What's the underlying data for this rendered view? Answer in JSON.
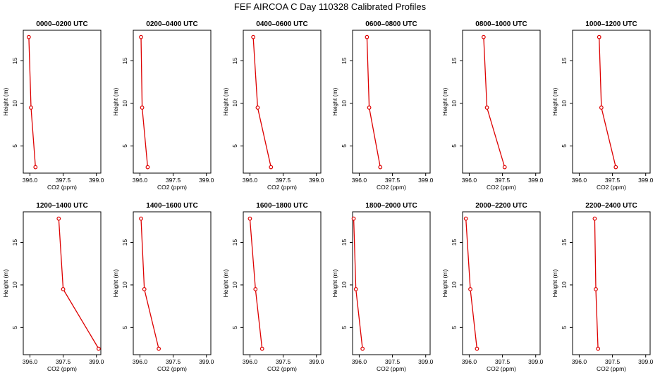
{
  "title": "FEF AIRCOA C  Day 110328  Calibrated Profiles",
  "xlabel": "CO2 (ppm)",
  "ylabel": "Height (m)",
  "series_color": "#dd0000",
  "x_ticks": [
    {
      "value": 396.0,
      "label": "396.0"
    },
    {
      "value": 397.5,
      "label": "397.5"
    },
    {
      "value": 399.0,
      "label": "399.0"
    }
  ],
  "y_ticks": [
    {
      "value": 5,
      "label": "5"
    },
    {
      "value": 10,
      "label": "10"
    },
    {
      "value": 15,
      "label": "15"
    }
  ],
  "chart_data": [
    {
      "type": "line",
      "title": "0000–0200 UTC",
      "xlabel": "CO2 (ppm)",
      "ylabel": "Height (m)",
      "xlim": [
        395.7,
        399.2
      ],
      "ylim": [
        1.8,
        18.6
      ],
      "x": [
        396.25,
        396.05,
        395.95
      ],
      "y": [
        2.5,
        9.5,
        17.8
      ]
    },
    {
      "type": "line",
      "title": "0200–0400 UTC",
      "xlabel": "CO2 (ppm)",
      "ylabel": "Height (m)",
      "xlim": [
        395.7,
        399.2
      ],
      "ylim": [
        1.8,
        18.6
      ],
      "x": [
        396.35,
        396.1,
        396.05
      ],
      "y": [
        2.5,
        9.5,
        17.8
      ]
    },
    {
      "type": "line",
      "title": "0400–0600 UTC",
      "xlabel": "CO2 (ppm)",
      "ylabel": "Height (m)",
      "xlim": [
        395.7,
        399.2
      ],
      "ylim": [
        1.8,
        18.6
      ],
      "x": [
        396.95,
        396.35,
        396.15
      ],
      "y": [
        2.5,
        9.5,
        17.8
      ]
    },
    {
      "type": "line",
      "title": "0600–0800 UTC",
      "xlabel": "CO2 (ppm)",
      "ylabel": "Height (m)",
      "xlim": [
        395.7,
        399.2
      ],
      "ylim": [
        1.8,
        18.6
      ],
      "x": [
        396.95,
        396.45,
        396.35
      ],
      "y": [
        2.5,
        9.5,
        17.8
      ]
    },
    {
      "type": "line",
      "title": "0800–1000 UTC",
      "xlabel": "CO2 (ppm)",
      "ylabel": "Height (m)",
      "xlim": [
        395.7,
        399.2
      ],
      "ylim": [
        1.8,
        18.6
      ],
      "x": [
        397.6,
        396.8,
        396.65
      ],
      "y": [
        2.5,
        9.5,
        17.8
      ]
    },
    {
      "type": "line",
      "title": "1000–1200 UTC",
      "xlabel": "CO2 (ppm)",
      "ylabel": "Height (m)",
      "xlim": [
        395.7,
        399.2
      ],
      "ylim": [
        1.8,
        18.6
      ],
      "x": [
        397.65,
        397.0,
        396.9
      ],
      "y": [
        2.5,
        9.5,
        17.8
      ]
    },
    {
      "type": "line",
      "title": "1200–1400 UTC",
      "xlabel": "CO2 (ppm)",
      "ylabel": "Height (m)",
      "xlim": [
        395.7,
        399.2
      ],
      "ylim": [
        1.8,
        18.6
      ],
      "x": [
        399.1,
        397.5,
        397.3
      ],
      "y": [
        2.5,
        9.5,
        17.8
      ]
    },
    {
      "type": "line",
      "title": "1400–1600 UTC",
      "xlabel": "CO2 (ppm)",
      "ylabel": "Height (m)",
      "xlim": [
        395.7,
        399.2
      ],
      "ylim": [
        1.8,
        18.6
      ],
      "x": [
        396.85,
        396.2,
        396.05
      ],
      "y": [
        2.5,
        9.5,
        17.8
      ]
    },
    {
      "type": "line",
      "title": "1600–1800 UTC",
      "xlabel": "CO2 (ppm)",
      "ylabel": "Height (m)",
      "xlim": [
        395.7,
        399.2
      ],
      "ylim": [
        1.8,
        18.6
      ],
      "x": [
        396.55,
        396.25,
        396.0
      ],
      "y": [
        2.5,
        9.5,
        17.8
      ]
    },
    {
      "type": "line",
      "title": "1800–2000 UTC",
      "xlabel": "CO2 (ppm)",
      "ylabel": "Height (m)",
      "xlim": [
        395.7,
        399.2
      ],
      "ylim": [
        1.8,
        18.6
      ],
      "x": [
        396.15,
        395.85,
        395.75
      ],
      "y": [
        2.5,
        9.5,
        17.8
      ]
    },
    {
      "type": "line",
      "title": "2000–2200 UTC",
      "xlabel": "CO2 (ppm)",
      "ylabel": "Height (m)",
      "xlim": [
        395.7,
        399.2
      ],
      "ylim": [
        1.8,
        18.6
      ],
      "x": [
        396.35,
        396.05,
        395.85
      ],
      "y": [
        2.5,
        9.5,
        17.8
      ]
    },
    {
      "type": "line",
      "title": "2200–2400 UTC",
      "xlabel": "CO2 (ppm)",
      "ylabel": "Height (m)",
      "xlim": [
        395.7,
        399.2
      ],
      "ylim": [
        1.8,
        18.6
      ],
      "x": [
        396.85,
        396.75,
        396.7
      ],
      "y": [
        2.5,
        9.5,
        17.8
      ]
    }
  ]
}
